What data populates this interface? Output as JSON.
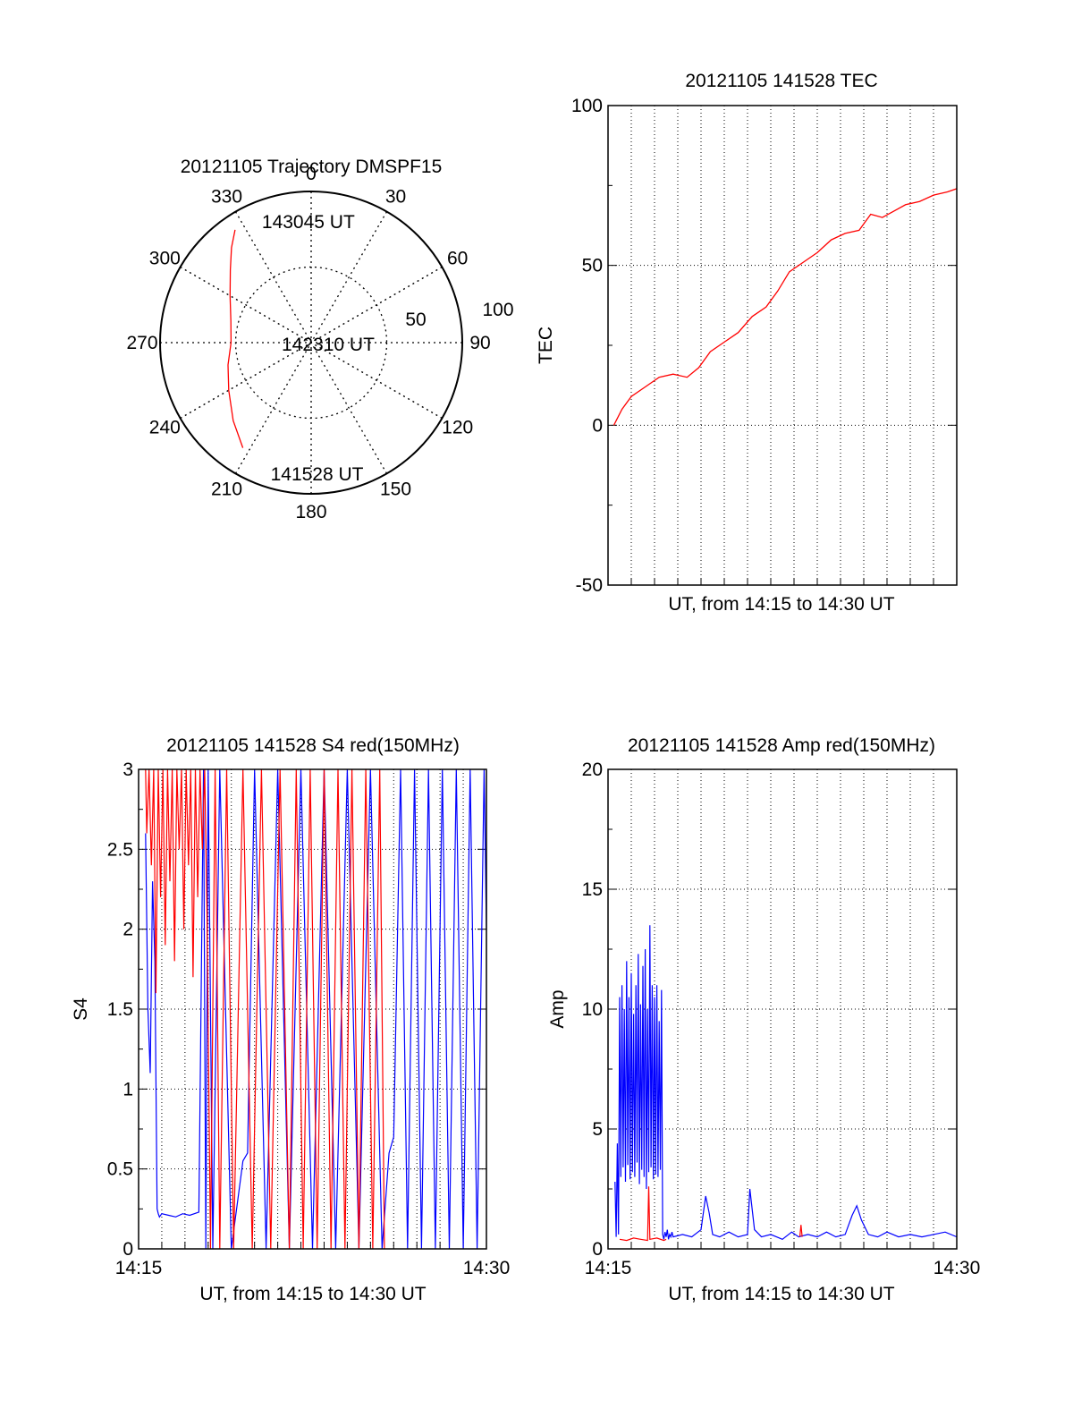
{
  "chart_data": [
    {
      "id": "trajectory",
      "type": "polar",
      "title": "20121105 Trajectory DMSPF15",
      "angle_labels": [
        "0",
        "30",
        "60",
        "90",
        "120",
        "150",
        "180",
        "210",
        "240",
        "270",
        "300",
        "330"
      ],
      "radius_labels": [
        "50",
        "100"
      ],
      "rlim": [
        0,
        100
      ],
      "grid": true,
      "series": [
        {
          "color": "#ff0000",
          "points": [
            {
              "az": 213,
              "r": 83
            },
            {
              "az": 225,
              "r": 73
            },
            {
              "az": 240,
              "r": 63
            },
            {
              "az": 255,
              "r": 57
            },
            {
              "az": 270,
              "r": 53
            },
            {
              "az": 285,
              "r": 55
            },
            {
              "az": 300,
              "r": 62
            },
            {
              "az": 312,
              "r": 72
            },
            {
              "az": 320,
              "r": 82
            },
            {
              "az": 326,
              "r": 90
            }
          ]
        }
      ],
      "annotations": [
        {
          "text": "143045 UT",
          "az": 340,
          "r": 85
        },
        {
          "text": "142310 UT",
          "az": 266,
          "r": 16
        },
        {
          "text": "141528 UT",
          "az": 195,
          "r": 90
        }
      ],
      "colors": {
        "track": "#ff0000",
        "grid": "#000000"
      }
    },
    {
      "id": "tec",
      "type": "line",
      "title": "20121105 141528 TEC",
      "xlabel": "UT, from 14:15 to 14:30 UT",
      "ylabel": "TEC",
      "xlim": [
        0,
        15
      ],
      "ylim": [
        -50,
        100
      ],
      "yticks": [
        "-50",
        "0",
        "50",
        "100"
      ],
      "grid": true,
      "series": [
        {
          "color": "#ff0000",
          "x": [
            0.25,
            0.6,
            1.0,
            1.6,
            2.2,
            2.8,
            3.4,
            3.9,
            4.4,
            5.0,
            5.6,
            6.2,
            6.8,
            7.3,
            7.8,
            8.4,
            9.0,
            9.6,
            10.2,
            10.8,
            11.3,
            11.8,
            12.3,
            12.8,
            13.4,
            14.0,
            14.6,
            15.0
          ],
          "y": [
            0,
            5,
            9,
            12,
            15,
            16,
            15,
            18,
            23,
            26,
            29,
            34,
            37,
            42,
            48,
            51,
            54,
            58,
            60,
            61,
            66,
            65,
            67,
            69,
            70,
            72,
            73,
            74
          ]
        }
      ],
      "colors": {
        "line": "#ff0000"
      }
    },
    {
      "id": "s4",
      "type": "line",
      "title": "20121105 141528 S4 red(150MHz)",
      "xlabel": "UT, from 14:15 to 14:30 UT",
      "ylabel": "S4",
      "xlim": [
        0,
        15
      ],
      "ylim": [
        0,
        3
      ],
      "xticks": [
        "14:15",
        "14:30"
      ],
      "yticks": [
        "0",
        "0.5",
        "1",
        "1.5",
        "2",
        "2.5",
        "3"
      ],
      "grid": true,
      "series": [
        {
          "color": "#ff0000",
          "x": [
            0.3,
            0.35,
            0.45,
            0.55,
            0.65,
            0.75,
            0.85,
            0.95,
            1.05,
            1.15,
            1.25,
            1.35,
            1.45,
            1.55,
            1.65,
            1.75,
            1.85,
            1.95,
            2.05,
            2.15,
            2.25,
            2.35,
            2.45,
            2.55,
            2.65,
            2.75,
            2.85,
            2.95,
            3.1,
            3.3,
            3.5,
            3.8,
            4.1,
            4.5,
            4.9,
            5.3,
            5.7,
            6.1,
            6.5,
            6.8,
            7.1,
            7.4,
            7.7,
            8.0,
            8.3,
            8.6,
            8.9,
            9.2,
            9.5,
            9.8,
            10.1,
            10.4,
            10.6
          ],
          "y": [
            3,
            2.6,
            3,
            2.4,
            3,
            1.6,
            3,
            2.2,
            3,
            1.9,
            3,
            2.3,
            3,
            1.8,
            3,
            2.5,
            3,
            2.0,
            3,
            2.4,
            3,
            1.7,
            3,
            2.2,
            3,
            2.5,
            3,
            2.1,
            0,
            3,
            0,
            3,
            0,
            3,
            0,
            3,
            0,
            3,
            0,
            3,
            0,
            3,
            0,
            3,
            0,
            3,
            0,
            3,
            0,
            3,
            0,
            3,
            0
          ]
        },
        {
          "color": "#0000ff",
          "x": [
            0.3,
            0.4,
            0.5,
            0.6,
            0.7,
            0.8,
            0.85,
            0.9,
            1.0,
            1.3,
            1.6,
            1.9,
            2.2,
            2.6,
            2.8,
            2.9,
            3.0,
            3.2,
            3.5,
            4.0,
            4.5,
            4.7,
            5.0,
            5.5,
            6.0,
            6.5,
            7.0,
            7.5,
            8.0,
            8.5,
            9.0,
            9.5,
            10.0,
            10.5,
            10.8,
            11.0,
            11.3,
            11.6,
            11.9,
            12.2,
            12.5,
            12.8,
            13.1,
            13.4,
            13.7,
            14.0,
            14.3,
            14.6,
            14.9,
            15.0
          ],
          "y": [
            2.6,
            1.5,
            1.1,
            2.3,
            1.8,
            0.25,
            0.22,
            0.2,
            0.22,
            0.21,
            0.2,
            0.22,
            0.21,
            0.23,
            3,
            0,
            3,
            0,
            3,
            0,
            0.55,
            0.6,
            3,
            0,
            3,
            0,
            3,
            0,
            3,
            0,
            3,
            0,
            3,
            0,
            0.6,
            0.7,
            3,
            0,
            3,
            0,
            3,
            0,
            3,
            0,
            3,
            0,
            3,
            0,
            3,
            2.0
          ]
        }
      ],
      "colors": {
        "s4_red": "#ff0000",
        "s4_blue": "#0000ff"
      }
    },
    {
      "id": "amp",
      "type": "line",
      "title": "20121105 141528 Amp red(150MHz)",
      "xlabel": "UT, from 14:15 to 14:30 UT",
      "ylabel": "Amp",
      "xlim": [
        0,
        15
      ],
      "ylim": [
        0,
        20
      ],
      "xticks": [
        "14:15",
        "14:30"
      ],
      "yticks": [
        "0",
        "5",
        "10",
        "15",
        "20"
      ],
      "grid": true,
      "series": [
        {
          "color": "#0000ff",
          "x": [
            0.3,
            0.35,
            0.4,
            0.45,
            0.5,
            0.55,
            0.6,
            0.65,
            0.7,
            0.75,
            0.8,
            0.85,
            0.9,
            0.95,
            1.0,
            1.05,
            1.1,
            1.15,
            1.2,
            1.25,
            1.3,
            1.35,
            1.4,
            1.45,
            1.5,
            1.55,
            1.6,
            1.65,
            1.7,
            1.75,
            1.8,
            1.85,
            1.9,
            1.95,
            2.0,
            2.05,
            2.1,
            2.15,
            2.2,
            2.25,
            2.3,
            2.35,
            2.4,
            2.45,
            2.5,
            2.55,
            2.6,
            2.65,
            2.7,
            2.75,
            2.8,
            3.2,
            3.6,
            4.0,
            4.2,
            4.35,
            4.5,
            4.8,
            5.2,
            5.6,
            6.0,
            6.1,
            6.3,
            6.6,
            7.0,
            7.5,
            7.9,
            8.2,
            8.6,
            9.0,
            9.4,
            9.8,
            10.2,
            10.5,
            10.7,
            10.9,
            11.2,
            11.6,
            12.0,
            12.5,
            13.0,
            13.5,
            14.0,
            14.5,
            15.0
          ],
          "y": [
            2.8,
            0.5,
            4.4,
            0.6,
            10.5,
            3.0,
            11.0,
            3.4,
            10.0,
            2.8,
            12.0,
            3.5,
            10.5,
            2.9,
            11.5,
            3.2,
            9.8,
            3.0,
            11.0,
            3.6,
            12.3,
            2.7,
            10.2,
            3.3,
            11.8,
            3.0,
            12.5,
            2.5,
            10.0,
            3.2,
            13.5,
            3.4,
            11.0,
            2.9,
            10.5,
            3.1,
            11.0,
            3.0,
            9.5,
            3.3,
            10.8,
            0.6,
            0.4,
            0.7,
            0.5,
            0.8,
            0.4,
            0.6,
            0.5,
            0.7,
            0.5,
            0.6,
            0.5,
            0.8,
            2.2,
            1.5,
            0.6,
            0.5,
            0.7,
            0.5,
            0.6,
            2.5,
            0.8,
            0.5,
            0.6,
            0.4,
            0.7,
            0.5,
            0.6,
            0.5,
            0.7,
            0.5,
            0.6,
            1.4,
            1.8,
            1.2,
            0.6,
            0.5,
            0.7,
            0.5,
            0.6,
            0.5,
            0.6,
            0.7,
            0.5
          ]
        },
        {
          "color": "#ff0000",
          "x": [
            0.5,
            0.8,
            1.1,
            1.4,
            1.7,
            1.75,
            1.8,
            2.1,
            2.4,
            2.5
          ],
          "y": [
            0.4,
            0.35,
            0.45,
            0.4,
            0.35,
            2.6,
            0.4,
            0.45,
            0.35,
            0.4
          ]
        },
        {
          "color": "#ff0000",
          "x": [
            8.25,
            8.3,
            8.35
          ],
          "y": [
            0.5,
            1.0,
            0.5
          ]
        }
      ],
      "colors": {
        "amp_red": "#ff0000",
        "amp_blue": "#0000ff"
      }
    }
  ]
}
